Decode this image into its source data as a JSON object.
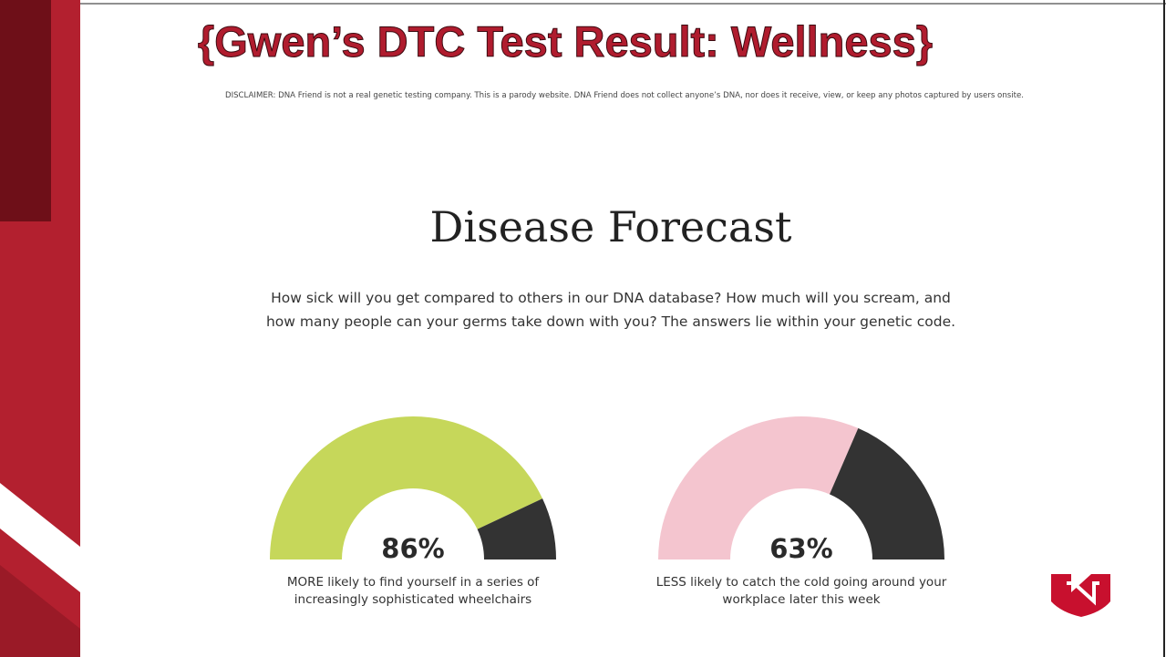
{
  "slide_title": "{Gwen’s DTC Test Result: Wellness}",
  "disclaimer": "DISCLAIMER: DNA Friend is not a real genetic testing company. This is a parody website. DNA Friend does not collect anyone’s DNA, nor does it receive, view, or keep any photos captured by users onsite.",
  "heading": "Disease Forecast",
  "intro": "How sick will you get compared to others in our DNA database? How much will you scream, and how many people can your germs take down with you? The answers lie within your genetic code.",
  "chart_data": [
    {
      "type": "gauge",
      "values": [
        86
      ],
      "value_labels": [
        "86%"
      ],
      "ylim": [
        0,
        100
      ],
      "color": "#c6d75a",
      "rest_color": "#333333",
      "caption": "MORE likely to find yourself in a series of increasingly sophisticated wheelchairs"
    },
    {
      "type": "gauge",
      "values": [
        63
      ],
      "value_labels": [
        "63%"
      ],
      "ylim": [
        0,
        100
      ],
      "color": "#f4c5cf",
      "rest_color": "#333333",
      "caption": "LESS likely to catch the cold going around your workplace later this week"
    }
  ]
}
